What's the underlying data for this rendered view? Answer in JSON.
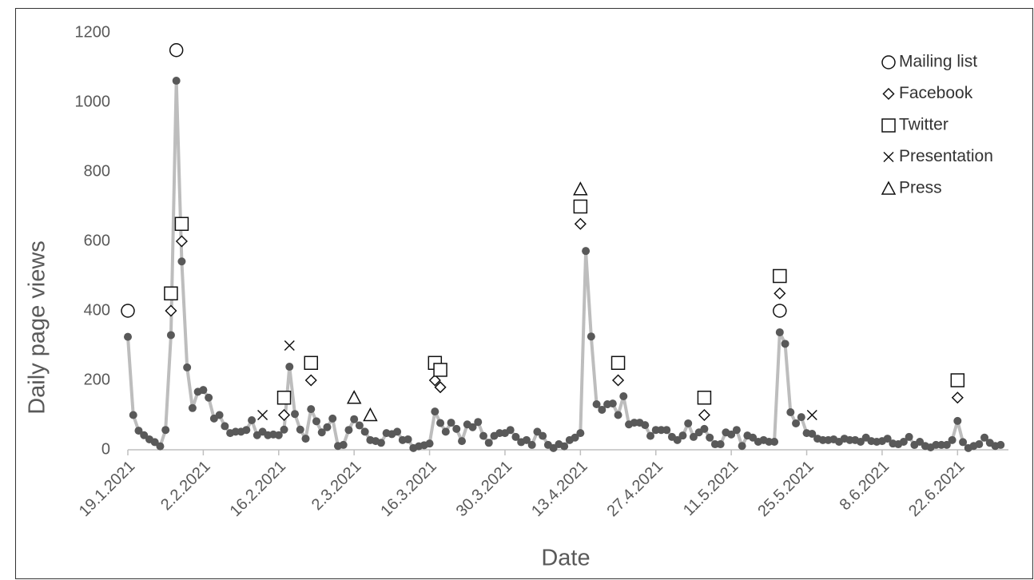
{
  "chart_data": {
    "type": "line",
    "x_label": "Date",
    "y_label": "Daily page views",
    "xlim": [
      "2021-01-19",
      "2021-07-01"
    ],
    "xticks": [
      {
        "value": "2021-01-19",
        "label": "19.1.2021"
      },
      {
        "value": "2021-02-02",
        "label": "2.2.2021"
      },
      {
        "value": "2021-02-16",
        "label": "16.2.2021"
      },
      {
        "value": "2021-03-02",
        "label": "2.3.2021"
      },
      {
        "value": "2021-03-16",
        "label": "16.3.2021"
      },
      {
        "value": "2021-03-30",
        "label": "30.3.2021"
      },
      {
        "value": "2021-04-13",
        "label": "13.4.2021"
      },
      {
        "value": "2021-04-27",
        "label": "27.4.2021"
      },
      {
        "value": "2021-05-11",
        "label": "11.5.2021"
      },
      {
        "value": "2021-05-25",
        "label": "25.5.2021"
      },
      {
        "value": "2021-06-08",
        "label": "8.6.2021"
      },
      {
        "value": "2021-06-22",
        "label": "22.6.2021"
      }
    ],
    "ylim": [
      0,
      1200
    ],
    "yticks": [
      0,
      200,
      400,
      600,
      800,
      1000,
      1200
    ],
    "grid": false,
    "legend": "upper right",
    "x": [
      "2021-01-19",
      "2021-01-20",
      "2021-01-21",
      "2021-01-22",
      "2021-01-23",
      "2021-01-24",
      "2021-01-25",
      "2021-01-26",
      "2021-01-27",
      "2021-01-28",
      "2021-01-29",
      "2021-01-30",
      "2021-01-31",
      "2021-02-01",
      "2021-02-02",
      "2021-02-03",
      "2021-02-04",
      "2021-02-05",
      "2021-02-06",
      "2021-02-07",
      "2021-02-08",
      "2021-02-09",
      "2021-02-10",
      "2021-02-11",
      "2021-02-12",
      "2021-02-13",
      "2021-02-14",
      "2021-02-15",
      "2021-02-16",
      "2021-02-17",
      "2021-02-18",
      "2021-02-19",
      "2021-02-20",
      "2021-02-21",
      "2021-02-22",
      "2021-02-23",
      "2021-02-24",
      "2021-02-25",
      "2021-02-26",
      "2021-02-27",
      "2021-02-28",
      "2021-03-01",
      "2021-03-02",
      "2021-03-03",
      "2021-03-04",
      "2021-03-05",
      "2021-03-06",
      "2021-03-07",
      "2021-03-08",
      "2021-03-09",
      "2021-03-10",
      "2021-03-11",
      "2021-03-12",
      "2021-03-13",
      "2021-03-14",
      "2021-03-15",
      "2021-03-16",
      "2021-03-17",
      "2021-03-18",
      "2021-03-19",
      "2021-03-20",
      "2021-03-21",
      "2021-03-22",
      "2021-03-23",
      "2021-03-24",
      "2021-03-25",
      "2021-03-26",
      "2021-03-27",
      "2021-03-28",
      "2021-03-29",
      "2021-03-30",
      "2021-03-31",
      "2021-04-01",
      "2021-04-02",
      "2021-04-03",
      "2021-04-04",
      "2021-04-05",
      "2021-04-06",
      "2021-04-07",
      "2021-04-08",
      "2021-04-09",
      "2021-04-10",
      "2021-04-11",
      "2021-04-12",
      "2021-04-13",
      "2021-04-14",
      "2021-04-15",
      "2021-04-16",
      "2021-04-17",
      "2021-04-18",
      "2021-04-19",
      "2021-04-20",
      "2021-04-21",
      "2021-04-22",
      "2021-04-23",
      "2021-04-24",
      "2021-04-25",
      "2021-04-26",
      "2021-04-27",
      "2021-04-28",
      "2021-04-29",
      "2021-04-30",
      "2021-05-01",
      "2021-05-02",
      "2021-05-03",
      "2021-05-04",
      "2021-05-05",
      "2021-05-06",
      "2021-05-07",
      "2021-05-08",
      "2021-05-09",
      "2021-05-10",
      "2021-05-11",
      "2021-05-12",
      "2021-05-13",
      "2021-05-14",
      "2021-05-15",
      "2021-05-16",
      "2021-05-17",
      "2021-05-18",
      "2021-05-19",
      "2021-05-20",
      "2021-05-21",
      "2021-05-22",
      "2021-05-23",
      "2021-05-24",
      "2021-05-25",
      "2021-05-26",
      "2021-05-27",
      "2021-05-28",
      "2021-05-29",
      "2021-05-30",
      "2021-05-31",
      "2021-06-01",
      "2021-06-02",
      "2021-06-03",
      "2021-06-04",
      "2021-06-05",
      "2021-06-06",
      "2021-06-07",
      "2021-06-08",
      "2021-06-09",
      "2021-06-10",
      "2021-06-11",
      "2021-06-12",
      "2021-06-13",
      "2021-06-14",
      "2021-06-15",
      "2021-06-16",
      "2021-06-17",
      "2021-06-18",
      "2021-06-19",
      "2021-06-20",
      "2021-06-21",
      "2021-06-22",
      "2021-06-23",
      "2021-06-24",
      "2021-06-25",
      "2021-06-26",
      "2021-06-27",
      "2021-06-28",
      "2021-06-29",
      "2021-06-30"
    ],
    "values": [
      325,
      100,
      55,
      42,
      30,
      22,
      10,
      57,
      330,
      1062,
      542,
      237,
      120,
      167,
      172,
      150,
      90,
      100,
      68,
      48,
      52,
      52,
      57,
      85,
      42,
      52,
      42,
      44,
      42,
      58,
      239,
      103,
      58,
      32,
      117,
      82,
      50,
      65,
      90,
      11,
      14,
      57,
      88,
      70,
      52,
      28,
      25,
      20,
      48,
      45,
      52,
      28,
      30,
      5,
      10,
      13,
      18,
      110,
      77,
      52,
      78,
      60,
      25,
      73,
      65,
      80,
      40,
      20,
      40,
      48,
      48,
      57,
      37,
      22,
      28,
      14,
      52,
      40,
      14,
      5,
      16,
      10,
      28,
      35,
      48,
      572,
      326,
      131,
      115,
      131,
      133,
      100,
      154,
      73,
      78,
      78,
      71,
      40,
      57,
      57,
      57,
      37,
      28,
      41,
      76,
      37,
      50,
      60,
      35,
      16,
      16,
      50,
      44,
      57,
      11,
      41,
      35,
      23,
      28,
      23,
      23,
      338,
      305,
      108,
      76,
      94,
      48,
      46,
      32,
      28,
      28,
      30,
      23,
      32,
      28,
      28,
      23,
      35,
      25,
      23,
      25,
      32,
      18,
      16,
      23,
      37,
      14,
      23,
      11,
      7,
      14,
      14,
      14,
      28,
      83,
      22,
      5,
      11,
      16,
      35,
      20,
      11,
      14
    ],
    "color": "#bdbdbd",
    "point_color": "#595959",
    "events": [
      {
        "name": "Mailing list",
        "marker": "circle",
        "x": [
          "2021-01-19",
          "2021-01-28",
          "2021-05-20"
        ],
        "values": [
          400,
          1150,
          400
        ]
      },
      {
        "name": "Facebook",
        "marker": "diamond",
        "x": [
          "2021-01-27",
          "2021-01-29",
          "2021-02-17",
          "2021-02-22",
          "2021-03-17",
          "2021-03-18",
          "2021-04-13",
          "2021-04-20",
          "2021-05-06",
          "2021-05-20",
          "2021-06-22"
        ],
        "values": [
          400,
          600,
          100,
          200,
          200,
          180,
          650,
          200,
          100,
          450,
          150
        ]
      },
      {
        "name": "Twitter",
        "marker": "square",
        "x": [
          "2021-01-27",
          "2021-01-29",
          "2021-02-17",
          "2021-02-22",
          "2021-03-17",
          "2021-03-18",
          "2021-04-13",
          "2021-04-20",
          "2021-05-06",
          "2021-05-20",
          "2021-06-22"
        ],
        "values": [
          450,
          650,
          150,
          250,
          250,
          230,
          700,
          250,
          150,
          500,
          200
        ]
      },
      {
        "name": "Presentation",
        "marker": "x",
        "x": [
          "2021-02-13",
          "2021-02-18",
          "2021-05-26"
        ],
        "values": [
          100,
          300,
          100
        ]
      },
      {
        "name": "Press",
        "marker": "triangle",
        "x": [
          "2021-03-02",
          "2021-03-05",
          "2021-04-13"
        ],
        "values": [
          150,
          100,
          750
        ]
      }
    ]
  }
}
